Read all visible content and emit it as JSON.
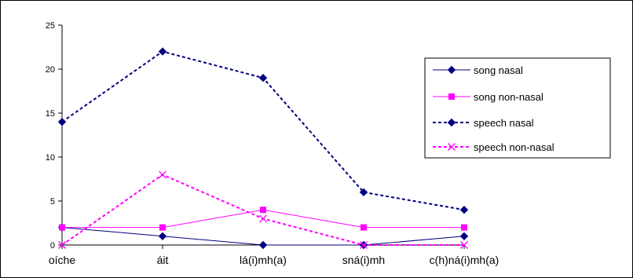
{
  "chart_data": {
    "type": "line",
    "categories": [
      "oíche",
      "áit",
      "lá(i)mh(a)",
      "sná(i)mh",
      "c(h)ná(i)mh(a)"
    ],
    "ylim": [
      0,
      25
    ],
    "yticks": [
      0,
      5,
      10,
      15,
      20,
      25
    ],
    "grid": false,
    "legend_position": "right",
    "series": [
      {
        "name": "song nasal",
        "values": [
          2,
          1,
          0,
          0,
          1
        ],
        "color": "#000080",
        "dash": "solid",
        "marker": "diamond"
      },
      {
        "name": "song non-nasal",
        "values": [
          2,
          2,
          4,
          2,
          2
        ],
        "color": "#ff00ff",
        "dash": "solid",
        "marker": "square"
      },
      {
        "name": "speech nasal",
        "values": [
          14,
          22,
          19,
          6,
          4
        ],
        "color": "#000080",
        "dash": "dashed",
        "marker": "diamond"
      },
      {
        "name": "speech non-nasal",
        "values": [
          0,
          8,
          3,
          0,
          0
        ],
        "color": "#ff00ff",
        "dash": "dashed",
        "marker": "x"
      }
    ]
  }
}
